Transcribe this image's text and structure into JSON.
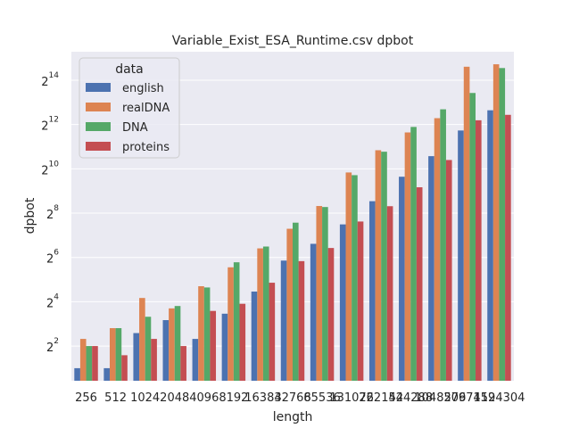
{
  "chart_data": {
    "type": "bar",
    "title": "Variable_Exist_ESA_Runtime.csv dpbot",
    "xlabel": "length",
    "ylabel": "dpbot",
    "yscale": "log2",
    "ylim": [
      1.35,
      40000
    ],
    "yticks": [
      {
        "base": "2",
        "exp": "2",
        "value": 4
      },
      {
        "base": "2",
        "exp": "4",
        "value": 16
      },
      {
        "base": "2",
        "exp": "6",
        "value": 64
      },
      {
        "base": "2",
        "exp": "8",
        "value": 256
      },
      {
        "base": "2",
        "exp": "10",
        "value": 1024
      },
      {
        "base": "2",
        "exp": "12",
        "value": 4096
      },
      {
        "base": "2",
        "exp": "14",
        "value": 16384
      }
    ],
    "grid": true,
    "legend_title": "data",
    "legend_position": "top-left",
    "categories": [
      "256",
      "512",
      "1024",
      "2048",
      "4096",
      "8192",
      "16384",
      "32768",
      "65536",
      "131072",
      "262144",
      "524288",
      "1048576",
      "2097152",
      "4194304"
    ],
    "series": [
      {
        "name": "english",
        "color": "#4c72b0",
        "values": [
          2,
          2,
          6,
          9,
          5,
          11,
          22,
          58,
          98,
          180,
          372,
          800,
          1523,
          3400,
          6400
        ]
      },
      {
        "name": "realDNA",
        "color": "#dd8452",
        "values": [
          5,
          7,
          18,
          13,
          26,
          47,
          85,
          157,
          320,
          914,
          1833,
          3200,
          5000,
          25000,
          27000
        ]
      },
      {
        "name": "DNA",
        "color": "#55a868",
        "values": [
          4,
          7,
          10,
          14,
          25,
          55,
          90,
          190,
          310,
          840,
          1750,
          3800,
          6600,
          11000,
          24000
        ]
      },
      {
        "name": "proteins",
        "color": "#c44e52",
        "values": [
          4,
          3,
          5,
          4,
          12,
          15,
          29,
          57,
          86,
          197,
          318,
          575,
          1350,
          4680,
          5550
        ]
      }
    ]
  }
}
